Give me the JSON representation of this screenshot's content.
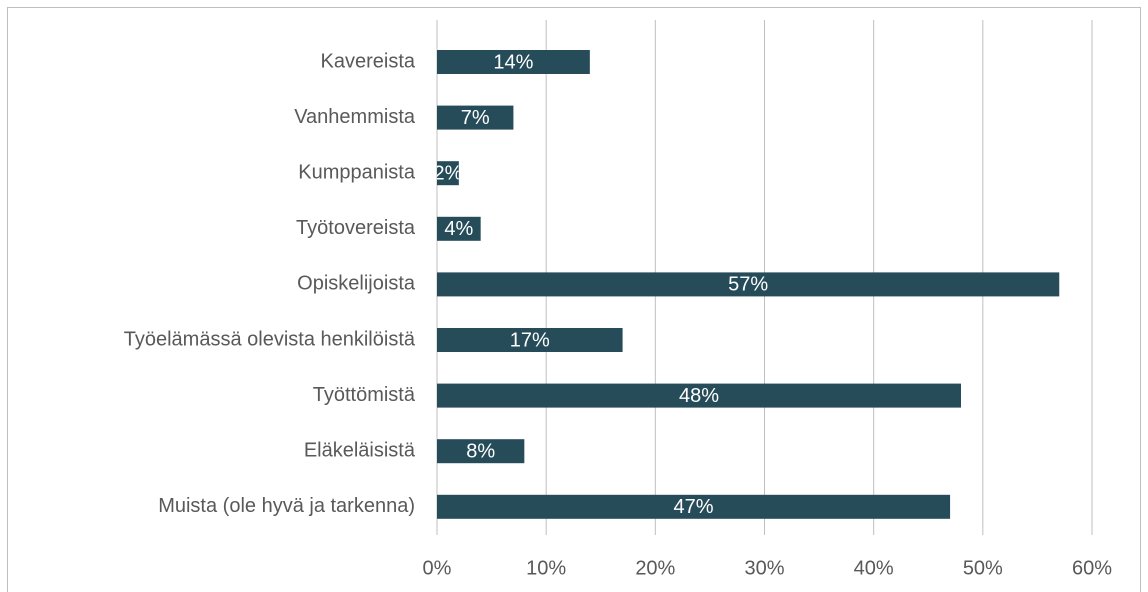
{
  "chart_data": {
    "type": "bar",
    "orientation": "horizontal",
    "categories": [
      "Kavereista",
      "Vanhemmista",
      "Kumppanista",
      "Työtovereista",
      "Opiskelijoista",
      "Työelämässä olevista henkilöistä",
      "Työttömistä",
      "Eläkeläisistä",
      "Muista (ole hyvä ja tarkenna)"
    ],
    "values": [
      14,
      7,
      2,
      4,
      57,
      17,
      48,
      8,
      47
    ],
    "value_labels": [
      "14%",
      "7%",
      "2%",
      "4%",
      "57%",
      "17%",
      "48%",
      "8%",
      "47%"
    ],
    "color": "#264b59",
    "xlim": [
      0,
      60
    ],
    "xticks": [
      {
        "value": 0,
        "label": "0%"
      },
      {
        "value": 10,
        "label": "10%"
      },
      {
        "value": 20,
        "label": "20%"
      },
      {
        "value": 30,
        "label": "30%"
      },
      {
        "value": 40,
        "label": "40%"
      },
      {
        "value": 50,
        "label": "50%"
      },
      {
        "value": 60,
        "label": "60%"
      }
    ],
    "grid": true
  }
}
